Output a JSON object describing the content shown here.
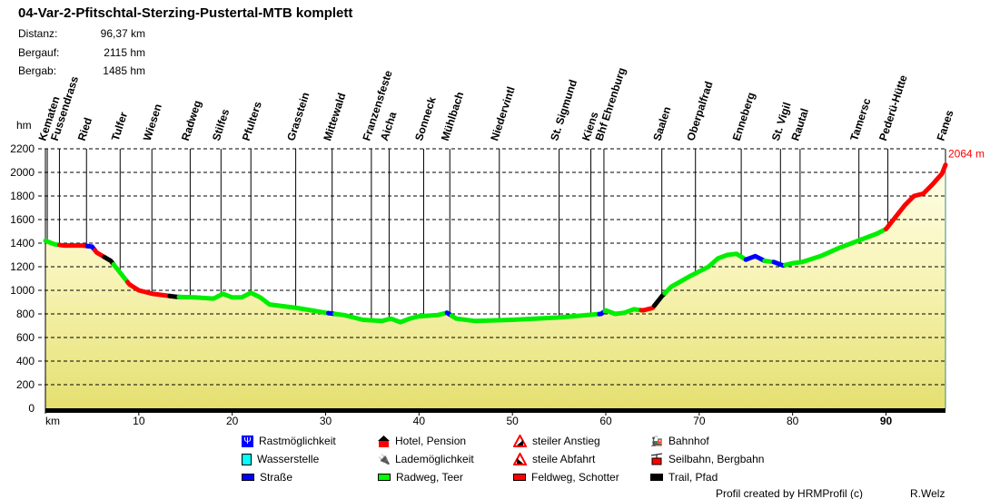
{
  "title": "04-Var-2-Pfitschtal-Sterzing-Pustertal-MTB komplett",
  "stats": [
    {
      "label": "Distanz:",
      "value": "96,37 km"
    },
    {
      "label": "Bergauf:",
      "value": "2115 hm"
    },
    {
      "label": "Bergab:",
      "value": "1485 hm"
    }
  ],
  "legend": [
    {
      "label": "Rastmöglichkeit",
      "icon": "fork-knife-icon",
      "color": "#0000ff"
    },
    {
      "label": "Hotel, Pension",
      "icon": "house-icon",
      "color": "#ff0000"
    },
    {
      "label": "steiler Anstieg",
      "icon": "steep-climb-icon",
      "color": "#ff0000"
    },
    {
      "label": "Bahnhof",
      "icon": "train-icon",
      "color": "#000000"
    },
    {
      "label": "Wasserstelle",
      "icon": "water-tap-icon",
      "color": "#00ffff"
    },
    {
      "label": "Lademöglichkeit",
      "icon": "plug-icon",
      "color": "#000000"
    },
    {
      "label": "steile Abfahrt",
      "icon": "steep-descent-icon",
      "color": "#ff0000"
    },
    {
      "label": "Seilbahn, Bergbahn",
      "icon": "cable-car-icon",
      "color": "#ff0000"
    },
    {
      "label": "Straße",
      "icon": "road-bar",
      "color": "#0000ff"
    },
    {
      "label": "Radweg, Teer",
      "icon": "bike-path-bar",
      "color": "#00ff00"
    },
    {
      "label": "Feldweg, Schotter",
      "icon": "gravel-bar",
      "color": "#ff0000"
    },
    {
      "label": "Trail, Pfad",
      "icon": "trail-bar",
      "color": "#000000"
    }
  ],
  "footer": {
    "credit": "Profil created by HRMProfil (c)",
    "author": "R.Welz"
  },
  "chart_data": {
    "type": "area",
    "ylabel": "hm",
    "xlabel": "km",
    "xlim": [
      0,
      96.37
    ],
    "ylim": [
      0,
      2200
    ],
    "yticks": [
      0,
      200,
      400,
      600,
      800,
      1000,
      1200,
      1400,
      1600,
      1800,
      2000,
      2200
    ],
    "xticks": [
      10,
      20,
      30,
      40,
      50,
      60,
      70,
      80,
      90
    ],
    "grid": "horizontal dashed",
    "end_label": "2064 m",
    "profile": [
      [
        0,
        1420
      ],
      [
        1,
        1390
      ],
      [
        2,
        1380
      ],
      [
        4,
        1380
      ],
      [
        5,
        1370
      ],
      [
        5.5,
        1320
      ],
      [
        7,
        1250
      ],
      [
        8,
        1150
      ],
      [
        9,
        1050
      ],
      [
        10,
        1000
      ],
      [
        11.5,
        970
      ],
      [
        14,
        945
      ],
      [
        16,
        940
      ],
      [
        18,
        930
      ],
      [
        19,
        970
      ],
      [
        20,
        940
      ],
      [
        21,
        940
      ],
      [
        22,
        980
      ],
      [
        23,
        940
      ],
      [
        24,
        880
      ],
      [
        27,
        850
      ],
      [
        30,
        810
      ],
      [
        32,
        790
      ],
      [
        34,
        750
      ],
      [
        36,
        740
      ],
      [
        37,
        760
      ],
      [
        38,
        730
      ],
      [
        39,
        760
      ],
      [
        40,
        780
      ],
      [
        42,
        790
      ],
      [
        43,
        810
      ],
      [
        44,
        760
      ],
      [
        46,
        740
      ],
      [
        50,
        750
      ],
      [
        55,
        770
      ],
      [
        58,
        790
      ],
      [
        59.5,
        800
      ],
      [
        60,
        830
      ],
      [
        61,
        800
      ],
      [
        62,
        810
      ],
      [
        63,
        840
      ],
      [
        64,
        830
      ],
      [
        65,
        850
      ],
      [
        66,
        950
      ],
      [
        67,
        1030
      ],
      [
        69,
        1120
      ],
      [
        70,
        1160
      ],
      [
        71,
        1200
      ],
      [
        72,
        1270
      ],
      [
        73,
        1300
      ],
      [
        74,
        1310
      ],
      [
        75,
        1260
      ],
      [
        76,
        1290
      ],
      [
        77,
        1250
      ],
      [
        78,
        1240
      ],
      [
        79,
        1210
      ],
      [
        80,
        1230
      ],
      [
        81,
        1240
      ],
      [
        83,
        1290
      ],
      [
        85,
        1360
      ],
      [
        87,
        1420
      ],
      [
        89,
        1480
      ],
      [
        90,
        1520
      ],
      [
        90.5,
        1570
      ],
      [
        91,
        1620
      ],
      [
        92,
        1720
      ],
      [
        93,
        1800
      ],
      [
        94,
        1820
      ],
      [
        95,
        1900
      ],
      [
        96,
        1990
      ],
      [
        96.37,
        2064
      ]
    ],
    "surface_segments": [
      {
        "from": 0,
        "to": 1.5,
        "type": "Radweg, Teer"
      },
      {
        "from": 1.5,
        "to": 4.5,
        "type": "Feldweg, Schotter"
      },
      {
        "from": 4.5,
        "to": 5.3,
        "type": "Straße"
      },
      {
        "from": 5.3,
        "to": 6.3,
        "type": "Feldweg, Schotter"
      },
      {
        "from": 6.3,
        "to": 7.3,
        "type": "Trail, Pfad"
      },
      {
        "from": 7.3,
        "to": 8.8,
        "type": "Radweg, Teer"
      },
      {
        "from": 8.8,
        "to": 13.3,
        "type": "Feldweg, Schotter"
      },
      {
        "from": 13.3,
        "to": 14.3,
        "type": "Trail, Pfad"
      },
      {
        "from": 14.3,
        "to": 30.3,
        "type": "Radweg, Teer"
      },
      {
        "from": 30.3,
        "to": 31,
        "type": "Straße"
      },
      {
        "from": 31,
        "to": 43,
        "type": "Radweg, Teer"
      },
      {
        "from": 43,
        "to": 43.5,
        "type": "Straße"
      },
      {
        "from": 43.5,
        "to": 59.3,
        "type": "Radweg, Teer"
      },
      {
        "from": 59.3,
        "to": 59.9,
        "type": "Straße"
      },
      {
        "from": 59.9,
        "to": 63.8,
        "type": "Radweg, Teer"
      },
      {
        "from": 63.8,
        "to": 65.2,
        "type": "Feldweg, Schotter"
      },
      {
        "from": 65.2,
        "to": 66.3,
        "type": "Trail, Pfad"
      },
      {
        "from": 66.3,
        "to": 75,
        "type": "Radweg, Teer"
      },
      {
        "from": 75,
        "to": 77,
        "type": "Straße"
      },
      {
        "from": 77,
        "to": 78,
        "type": "Radweg, Teer"
      },
      {
        "from": 78,
        "to": 79.2,
        "type": "Straße"
      },
      {
        "from": 79.2,
        "to": 90,
        "type": "Radweg, Teer"
      },
      {
        "from": 90,
        "to": 96.37,
        "type": "Feldweg, Schotter"
      }
    ],
    "waypoints": [
      {
        "name": "Kematen",
        "km": 0.2
      },
      {
        "name": "Fussendrass",
        "km": 1.5
      },
      {
        "name": "Ried",
        "km": 4.4
      },
      {
        "name": "Tulfer",
        "km": 8.0
      },
      {
        "name": "Wiesen",
        "km": 11.4
      },
      {
        "name": "Radweg",
        "km": 15.5
      },
      {
        "name": "Stilfes",
        "km": 18.8
      },
      {
        "name": "Pfulters",
        "km": 22.0
      },
      {
        "name": "Grasstein",
        "km": 26.8
      },
      {
        "name": "Mittewald",
        "km": 30.7
      },
      {
        "name": "Franzensfeste",
        "km": 34.9
      },
      {
        "name": "Aicha",
        "km": 36.8
      },
      {
        "name": "Sonneck",
        "km": 40.5
      },
      {
        "name": "Mühlbach",
        "km": 43.3
      },
      {
        "name": "Niedervintl",
        "km": 48.6
      },
      {
        "name": "St. Sigmund",
        "km": 55.0
      },
      {
        "name": "Kiens",
        "km": 58.4
      },
      {
        "name": "Bhf Ehrenburg",
        "km": 59.8
      },
      {
        "name": "Saalen",
        "km": 66.0
      },
      {
        "name": "Oberpalfrad",
        "km": 69.6
      },
      {
        "name": "Enneberg",
        "km": 74.5
      },
      {
        "name": "St. Vigil",
        "km": 78.7
      },
      {
        "name": "Rautal",
        "km": 80.8
      },
      {
        "name": "Tamersc",
        "km": 87.1
      },
      {
        "name": "Pederü-Hütte",
        "km": 90.2
      },
      {
        "name": "Fanes",
        "km": 96.37
      }
    ],
    "colors": {
      "Straße": "#0000ff",
      "Radweg, Teer": "#00ee00",
      "Feldweg, Schotter": "#ff0000",
      "Trail, Pfad": "#000000",
      "end_label": "#ff0000"
    }
  }
}
